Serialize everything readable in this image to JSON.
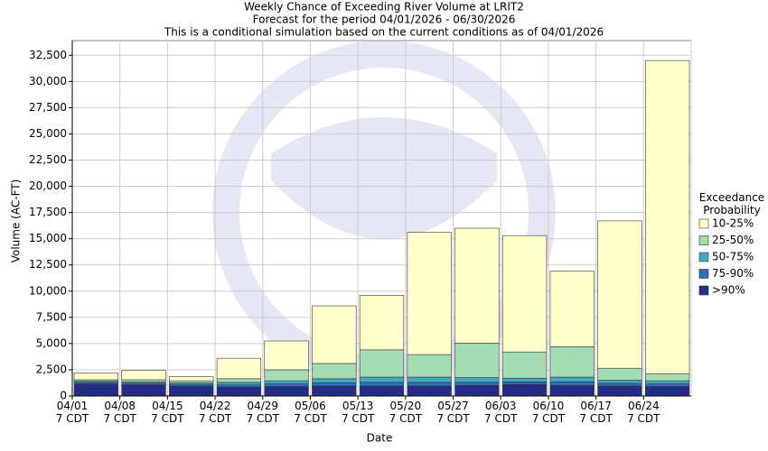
{
  "chart_data": {
    "type": "stacked_bar",
    "title": "Weekly Chance of Exceeding River Volume at LRIT2",
    "subtitle": "Forecast for the period 04/01/2026 - 06/30/2026",
    "subtitle2": "This is a conditional simulation based on the current conditions as of 04/01/2026",
    "y_label": "Volume (AC-FT)",
    "x_label": "Date",
    "legend_title": "Exceedance\nProbability",
    "categories": [
      "04/01\n7 CDT",
      "04/08\n7 CDT",
      "04/15\n7 CDT",
      "04/22\n7 CDT",
      "04/29\n7 CDT",
      "05/06\n7 CDT",
      "05/13\n7 CDT",
      "05/20\n7 CDT",
      "05/27\n7 CDT",
      "06/03\n7 CDT",
      "06/10\n7 CDT",
      "06/17\n7 CDT",
      "06/24\n7 CDT"
    ],
    "series": [
      {
        "name": ">90%",
        "color": "#262c86",
        "values": [
          1150,
          1050,
          950,
          850,
          900,
          950,
          950,
          950,
          1000,
          1100,
          1000,
          950,
          900
        ]
      },
      {
        "name": "75-90%",
        "color": "#2e6fb5",
        "values": [
          150,
          150,
          150,
          200,
          250,
          300,
          350,
          350,
          300,
          250,
          350,
          250,
          250
        ]
      },
      {
        "name": "50-75%",
        "color": "#41a7c6",
        "values": [
          100,
          150,
          150,
          250,
          300,
          400,
          500,
          500,
          450,
          350,
          450,
          300,
          300
        ]
      },
      {
        "name": "25-50%",
        "color": "#a6dcb4",
        "values": [
          150,
          200,
          200,
          350,
          1050,
          1450,
          2600,
          2150,
          3300,
          2500,
          2900,
          1150,
          650
        ]
      },
      {
        "name": "10-25%",
        "color": "#ffffcc",
        "values": [
          650,
          900,
          400,
          1950,
          2750,
          5500,
          5200,
          11650,
          10950,
          11100,
          7200,
          14050,
          29900
        ]
      }
    ],
    "ylim": [
      0,
      33900
    ],
    "yticks": [
      0,
      {
        "value": 2500,
        "label": "2,500"
      },
      {
        "value": 5000,
        "label": "5,000"
      },
      {
        "value": 7500,
        "label": "7,500"
      },
      {
        "value": 10000,
        "label": "10,000"
      },
      {
        "value": 12500,
        "label": "12,500"
      },
      {
        "value": 15000,
        "label": "15,000"
      },
      {
        "value": 17500,
        "label": "17,500"
      },
      {
        "value": 20000,
        "label": "20,000"
      },
      {
        "value": 22500,
        "label": "22,500"
      },
      {
        "value": 25000,
        "label": "25,000"
      },
      {
        "value": 27500,
        "label": "27,500"
      },
      {
        "value": 30000,
        "label": "30,000"
      },
      {
        "value": 32500,
        "label": "32,500"
      }
    ],
    "grid": true
  }
}
